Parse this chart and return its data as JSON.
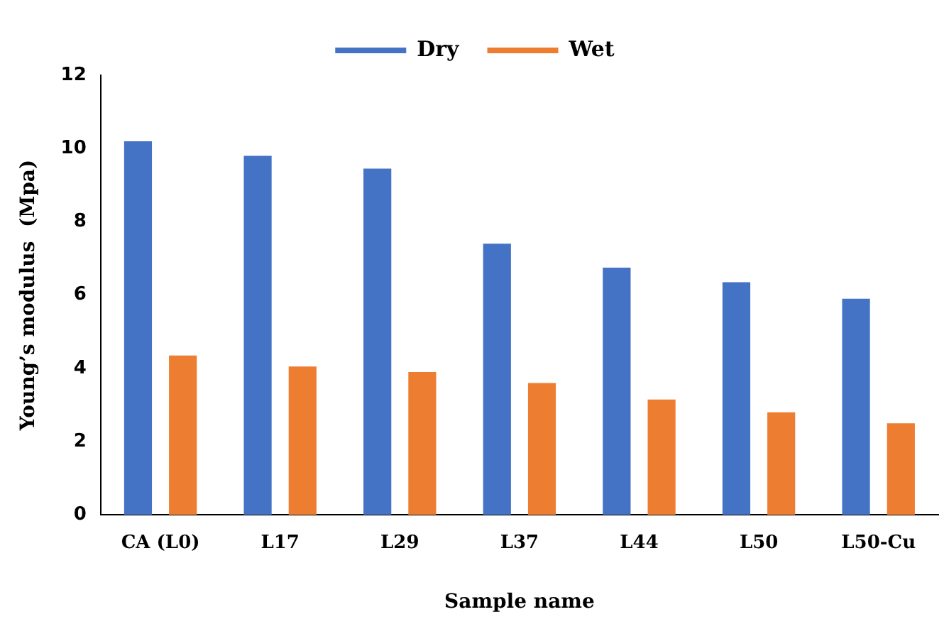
{
  "chart_data": {
    "type": "bar",
    "xlabel": "Sample name",
    "ylabel": "Young’s modulus  (Mpa)",
    "categories": [
      "CA (L0)",
      "L17",
      "L29",
      "L37",
      "L44",
      "L50",
      "L50-Cu"
    ],
    "series": [
      {
        "name": "Dry",
        "color": "#4472c4",
        "values": [
          10.2,
          9.8,
          9.45,
          7.4,
          6.75,
          6.35,
          5.9
        ]
      },
      {
        "name": "Wet",
        "color": "#ed7d31",
        "values": [
          4.35,
          4.05,
          3.9,
          3.6,
          3.15,
          2.8,
          2.5
        ]
      }
    ],
    "ylim": [
      0,
      12
    ],
    "yticks": [
      0,
      2,
      4,
      6,
      8,
      10,
      12
    ],
    "grid": false,
    "legend": "top"
  }
}
